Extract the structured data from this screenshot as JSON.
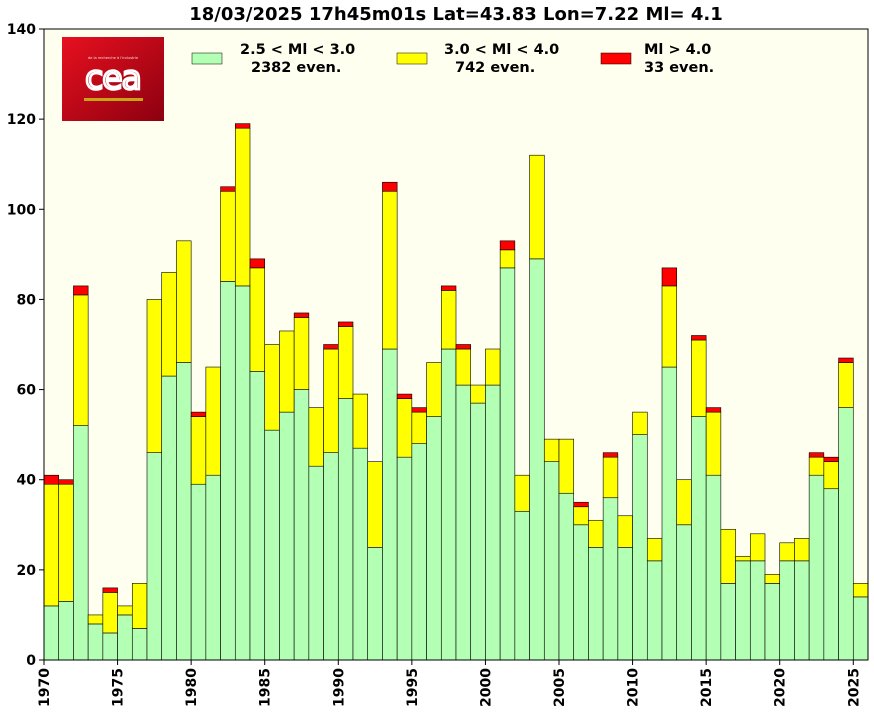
{
  "chart_data": {
    "type": "bar",
    "stacked": true,
    "title": "18/03/2025 17h45m01s Lat=43.83 Lon=7.22 Ml= 4.1",
    "xlabel": "",
    "ylabel": "",
    "xlim": [
      1970,
      2026
    ],
    "ylim": [
      0,
      140
    ],
    "y_ticks": [
      0,
      20,
      40,
      60,
      80,
      100,
      120,
      140
    ],
    "x_ticks": [
      1970,
      1975,
      1980,
      1985,
      1990,
      1995,
      2000,
      2005,
      2010,
      2015,
      2020,
      2025
    ],
    "grid": false,
    "background": "#fffff0",
    "legend_position": "top",
    "categories": [
      1970,
      1971,
      1972,
      1973,
      1974,
      1975,
      1976,
      1977,
      1978,
      1979,
      1980,
      1981,
      1982,
      1983,
      1984,
      1985,
      1986,
      1987,
      1988,
      1989,
      1990,
      1991,
      1992,
      1993,
      1994,
      1995,
      1996,
      1997,
      1998,
      1999,
      2000,
      2001,
      2002,
      2003,
      2004,
      2005,
      2006,
      2007,
      2008,
      2009,
      2010,
      2011,
      2012,
      2013,
      2014,
      2015,
      2016,
      2017,
      2018,
      2019,
      2020,
      2021,
      2022,
      2023,
      2024,
      2025
    ],
    "series": [
      {
        "name": "2.5 < Ml <  3.0",
        "count_label": "2382 even.",
        "color": "#b3ffb3",
        "values": [
          12,
          13,
          52,
          8,
          6,
          10,
          7,
          46,
          63,
          66,
          39,
          41,
          84,
          83,
          64,
          51,
          55,
          60,
          43,
          46,
          58,
          47,
          25,
          69,
          45,
          48,
          54,
          69,
          61,
          57,
          61,
          87,
          33,
          89,
          44,
          37,
          30,
          25,
          36,
          25,
          50,
          22,
          65,
          30,
          54,
          41,
          17,
          22,
          22,
          17,
          22,
          22,
          41,
          38,
          56,
          14
        ]
      },
      {
        "name": "3.0 < Ml <  4.0",
        "count_label": "742 even.",
        "color": "#ffff00",
        "values": [
          27,
          26,
          29,
          2,
          9,
          2,
          10,
          34,
          23,
          27,
          15,
          24,
          20,
          35,
          23,
          19,
          18,
          16,
          13,
          23,
          16,
          12,
          19,
          35,
          13,
          7,
          12,
          13,
          8,
          4,
          8,
          4,
          8,
          23,
          5,
          12,
          4,
          6,
          9,
          7,
          5,
          5,
          18,
          10,
          17,
          14,
          12,
          1,
          6,
          2,
          4,
          5,
          4,
          6,
          10,
          3
        ]
      },
      {
        "name": "Ml >  4.0",
        "count_label": "33 even.",
        "color": "#ff0000",
        "values": [
          2,
          1,
          2,
          0,
          1,
          0,
          0,
          0,
          0,
          0,
          1,
          0,
          1,
          1,
          2,
          0,
          0,
          1,
          0,
          1,
          1,
          0,
          0,
          2,
          1,
          1,
          0,
          1,
          1,
          0,
          0,
          2,
          0,
          0,
          0,
          0,
          1,
          0,
          1,
          0,
          0,
          0,
          4,
          0,
          1,
          1,
          0,
          0,
          0,
          0,
          0,
          0,
          1,
          1,
          1,
          0
        ]
      }
    ]
  },
  "logo": {
    "name": "cea-logo-icon",
    "text": "cea",
    "tagline": "de la recherche à l'industrie",
    "color": "#e30613"
  }
}
